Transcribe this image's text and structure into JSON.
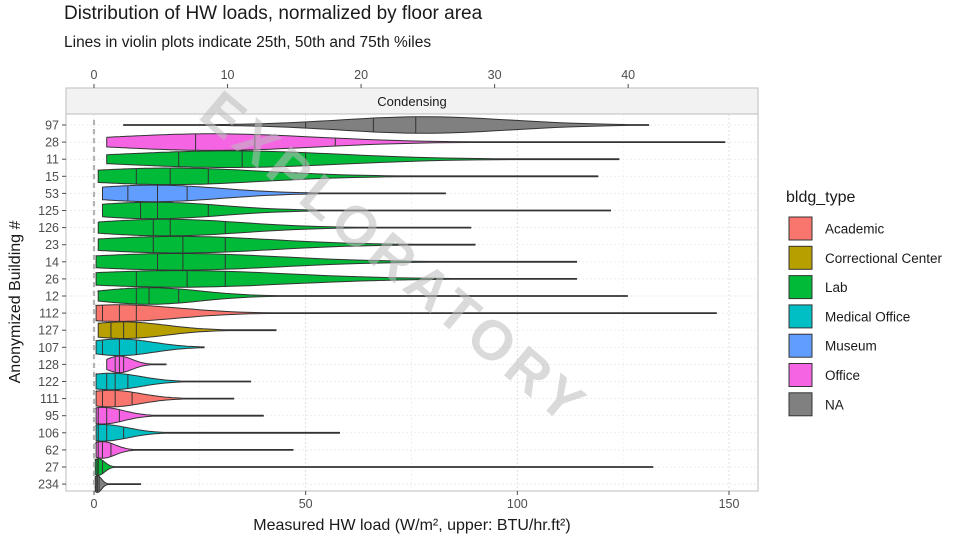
{
  "chart_data": {
    "type": "violin",
    "title": "Distribution of HW loads, normalized by floor area",
    "subtitle": "Lines in violin plots indicate 25th, 50th and 75th %iles",
    "facet_label": "Condensing",
    "xlabel": "Measured HW load (W/m², upper: BTU/hr.ft²)",
    "ylabel": "Anonymized Building #",
    "xlim": [
      -4,
      156
    ],
    "x_ticks_bottom": [
      0,
      50,
      100,
      150
    ],
    "x_ticks_top": [
      0,
      10,
      20,
      30,
      40
    ],
    "top_axis_unit_factor": 3.1546,
    "watermark": "EXPLORATORY",
    "legend": {
      "title": "bldg_type",
      "position": "right",
      "items": [
        {
          "label": "Academic",
          "color": "#F8766D"
        },
        {
          "label": "Correctional Center",
          "color": "#B79F00"
        },
        {
          "label": "Lab",
          "color": "#00BA38"
        },
        {
          "label": "Medical Office",
          "color": "#00BFC4"
        },
        {
          "label": "Museum",
          "color": "#619CFF"
        },
        {
          "label": "Office",
          "color": "#F564E3"
        },
        {
          "label": "NA",
          "color": "#808080"
        }
      ]
    },
    "buildings": [
      {
        "id": "97",
        "type": "NA",
        "min": 7,
        "max": 131,
        "q1": 50,
        "q2": 66,
        "q3": 76,
        "peak": 78,
        "spread": 20
      },
      {
        "id": "28",
        "type": "Office",
        "min": 3,
        "max": 149,
        "q1": 24,
        "q2": 38,
        "q3": 57,
        "peak": 28,
        "spread": 24
      },
      {
        "id": "11",
        "type": "Lab",
        "min": 3,
        "max": 124,
        "q1": 20,
        "q2": 35,
        "q3": 50,
        "peak": 32,
        "spread": 26
      },
      {
        "id": "15",
        "type": "Lab",
        "min": 1,
        "max": 119,
        "q1": 10,
        "q2": 18,
        "q3": 27,
        "peak": 18,
        "spread": 22
      },
      {
        "id": "53",
        "type": "Museum",
        "min": 2,
        "max": 83,
        "q1": 8,
        "q2": 15,
        "q3": 22,
        "peak": 14,
        "spread": 16
      },
      {
        "id": "125",
        "type": "Lab",
        "min": 2,
        "max": 122,
        "q1": 11,
        "q2": 15,
        "q3": 27,
        "peak": 14,
        "spread": 16
      },
      {
        "id": "126",
        "type": "Lab",
        "min": 1,
        "max": 89,
        "q1": 14,
        "q2": 18,
        "q3": 31,
        "peak": 17,
        "spread": 18
      },
      {
        "id": "23",
        "type": "Lab",
        "min": 1,
        "max": 90,
        "q1": 14,
        "q2": 21,
        "q3": 31,
        "peak": 20,
        "spread": 22
      },
      {
        "id": "14",
        "type": "Lab",
        "min": 0.5,
        "max": 114,
        "q1": 15,
        "q2": 21,
        "q3": 31,
        "peak": 20,
        "spread": 24
      },
      {
        "id": "26",
        "type": "Lab",
        "min": 0.5,
        "max": 114,
        "q1": 10,
        "q2": 22,
        "q3": 31,
        "peak": 20,
        "spread": 26
      },
      {
        "id": "12",
        "type": "Lab",
        "min": 1,
        "max": 126,
        "q1": 10,
        "q2": 13,
        "q3": 20,
        "peak": 13,
        "spread": 12
      },
      {
        "id": "112",
        "type": "Academic",
        "min": 0.5,
        "max": 147,
        "q1": 2,
        "q2": 6,
        "q3": 10,
        "peak": 6,
        "spread": 14
      },
      {
        "id": "127",
        "type": "Correctional Center",
        "min": 1,
        "max": 43,
        "q1": 4,
        "q2": 7,
        "q3": 10,
        "peak": 7,
        "spread": 10
      },
      {
        "id": "107",
        "type": "Medical Office",
        "min": 0.5,
        "max": 26,
        "q1": 2,
        "q2": 6,
        "q3": 10,
        "peak": 6,
        "spread": 8
      },
      {
        "id": "128",
        "type": "Office",
        "min": 3,
        "max": 17,
        "q1": 5,
        "q2": 6,
        "q3": 7,
        "peak": 6,
        "spread": 3
      },
      {
        "id": "122",
        "type": "Medical Office",
        "min": 0.5,
        "max": 37,
        "q1": 3,
        "q2": 5,
        "q3": 8,
        "peak": 4,
        "spread": 7
      },
      {
        "id": "111",
        "type": "Academic",
        "min": 0.5,
        "max": 33,
        "q1": 2,
        "q2": 5,
        "q3": 9,
        "peak": 4,
        "spread": 7
      },
      {
        "id": "95",
        "type": "Office",
        "min": 0.5,
        "max": 40,
        "q1": 1,
        "q2": 3,
        "q3": 6,
        "peak": 2,
        "spread": 5
      },
      {
        "id": "106",
        "type": "Medical Office",
        "min": 0.5,
        "max": 58,
        "q1": 1,
        "q2": 3,
        "q3": 7,
        "peak": 2,
        "spread": 6
      },
      {
        "id": "62",
        "type": "Office",
        "min": 0.5,
        "max": 47,
        "q1": 1,
        "q2": 2,
        "q3": 4,
        "peak": 2,
        "spread": 3
      },
      {
        "id": "27",
        "type": "Lab",
        "min": 0.3,
        "max": 132,
        "q1": 0.7,
        "q2": 1,
        "q3": 2,
        "peak": 1,
        "spread": 1.5
      },
      {
        "id": "234",
        "type": "NA",
        "min": 0.3,
        "max": 11,
        "q1": 0.5,
        "q2": 0.8,
        "q3": 1.2,
        "peak": 0.8,
        "spread": 1
      }
    ]
  }
}
